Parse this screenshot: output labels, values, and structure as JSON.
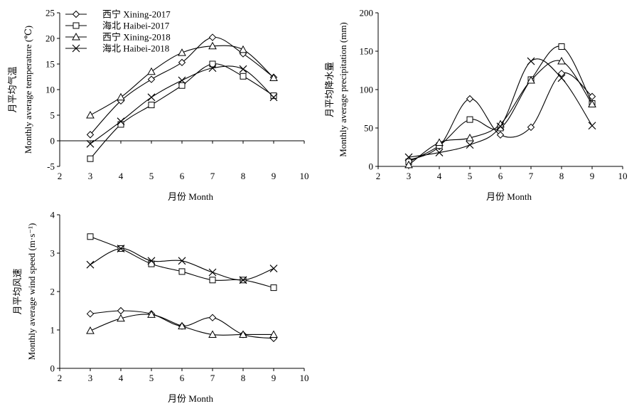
{
  "chart_data": [
    {
      "type": "line",
      "title": "",
      "xlabel": "月份 Month",
      "ylabel_cn": "月平均气温",
      "ylabel_en": "Monthly average temperature (℃)",
      "xlim": [
        2,
        10
      ],
      "ylim": [
        -5,
        25
      ],
      "xticks": [
        2,
        3,
        4,
        5,
        6,
        7,
        8,
        9,
        10
      ],
      "yticks": [
        -5,
        0,
        5,
        10,
        15,
        20,
        25
      ],
      "legend_position": "top-left",
      "grid": false,
      "x": [
        3,
        4,
        5,
        6,
        7,
        8,
        9
      ],
      "series": [
        {
          "name": "西宁 Xining-2017",
          "marker": "diamond",
          "values": [
            1.2,
            7.8,
            12.0,
            15.3,
            20.2,
            17.0,
            12.4
          ]
        },
        {
          "name": "海北 Haibei-2017",
          "marker": "square",
          "values": [
            -3.5,
            3.2,
            7.0,
            10.8,
            15.0,
            12.6,
            8.8
          ]
        },
        {
          "name": "西宁 Xining-2018",
          "marker": "triangle",
          "values": [
            5.0,
            8.5,
            13.5,
            17.2,
            18.5,
            17.8,
            12.3
          ]
        },
        {
          "name": "海北 Haibei-2018",
          "marker": "x",
          "values": [
            -0.6,
            3.8,
            8.5,
            11.8,
            14.2,
            14.0,
            8.5
          ]
        }
      ]
    },
    {
      "type": "line",
      "title": "",
      "xlabel": "月份 Month",
      "ylabel_cn": "月平均降水量",
      "ylabel_en": "Monthly average precipitation (mm)",
      "xlim": [
        2,
        10
      ],
      "ylim": [
        0,
        200
      ],
      "xticks": [
        2,
        3,
        4,
        5,
        6,
        7,
        8,
        9,
        10
      ],
      "yticks": [
        0,
        50,
        100,
        150,
        200
      ],
      "grid": false,
      "x": [
        3,
        4,
        5,
        6,
        7,
        8,
        9
      ],
      "series": [
        {
          "marker": "diamond",
          "values": [
            8,
            26,
            88,
            41,
            51,
            121,
            91
          ]
        },
        {
          "marker": "square",
          "values": [
            6,
            27,
            61,
            50,
            113,
            156,
            82
          ]
        },
        {
          "marker": "triangle",
          "values": [
            2,
            31,
            37,
            55,
            112,
            137,
            81
          ]
        },
        {
          "marker": "x",
          "values": [
            12,
            18,
            28,
            52,
            137,
            115,
            53
          ]
        }
      ]
    },
    {
      "type": "line",
      "title": "",
      "xlabel": "月份 Month",
      "ylabel_cn": "月平均风速",
      "ylabel_en": "Monthly average wind speed (m·s⁻¹)",
      "xlim": [
        2,
        10
      ],
      "ylim": [
        0,
        4
      ],
      "xticks": [
        2,
        3,
        4,
        5,
        6,
        7,
        8,
        9,
        10
      ],
      "yticks": [
        0,
        1,
        2,
        3,
        4
      ],
      "grid": false,
      "x": [
        3,
        4,
        5,
        6,
        7,
        8,
        9
      ],
      "series": [
        {
          "marker": "diamond",
          "values": [
            1.42,
            1.5,
            1.42,
            1.1,
            1.32,
            0.88,
            0.78
          ]
        },
        {
          "marker": "square",
          "values": [
            3.43,
            3.12,
            2.72,
            2.52,
            2.3,
            2.3,
            2.1
          ]
        },
        {
          "marker": "triangle",
          "values": [
            0.98,
            1.3,
            1.4,
            1.1,
            0.88,
            0.88,
            0.88
          ]
        },
        {
          "marker": "x",
          "values": [
            2.7,
            3.12,
            2.8,
            2.8,
            2.5,
            2.3,
            2.6
          ]
        }
      ]
    }
  ]
}
